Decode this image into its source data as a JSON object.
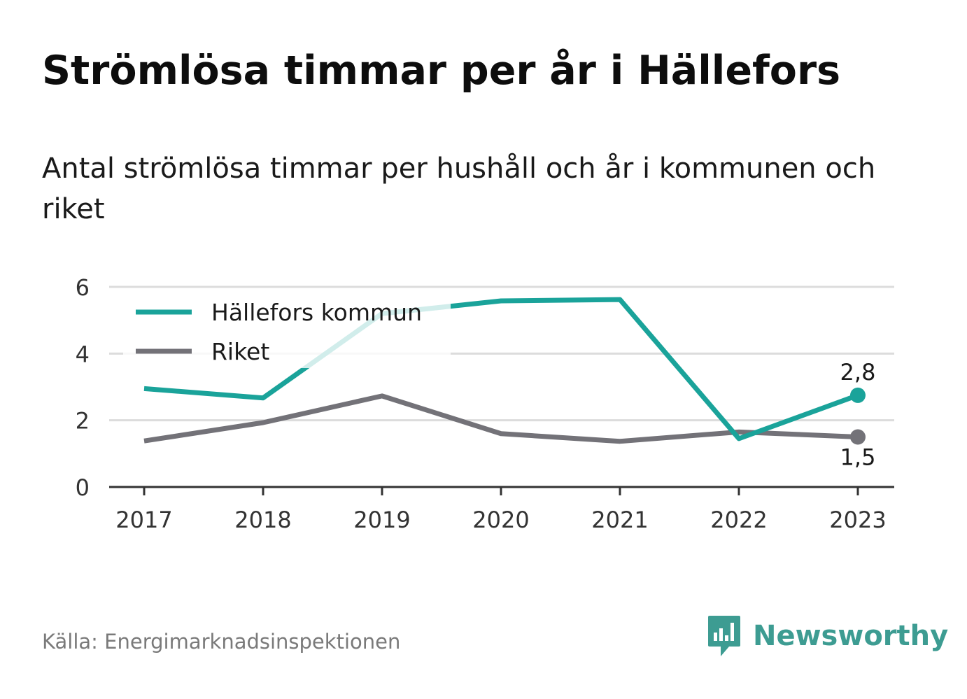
{
  "title": "Strömlösa timmar per år i Hällefors",
  "subtitle": "Antal strömlösa timmar per hushåll och år i kommunen och riket",
  "source": "Källa: Energimarknadsinspektionen",
  "brand": {
    "name": "Newsworthy",
    "icon": "bar-chart-speech-bubble-icon",
    "color": "#3d9c92"
  },
  "chart_data": {
    "type": "line",
    "x": [
      "2017",
      "2018",
      "2019",
      "2020",
      "2021",
      "2022",
      "2023"
    ],
    "ylim": [
      0,
      6
    ],
    "yticks": [
      "0",
      "2",
      "4",
      "6"
    ],
    "grid": true,
    "legend_placement": "top-left",
    "series": [
      {
        "name": "Hällefors kommun",
        "color": "#1aa39a",
        "values": [
          2.95,
          2.67,
          5.2,
          5.58,
          5.62,
          1.45,
          2.75
        ],
        "end_label": "2,8"
      },
      {
        "name": "Riket",
        "color": "#737278",
        "values": [
          1.38,
          1.93,
          2.73,
          1.6,
          1.37,
          1.65,
          1.5
        ],
        "end_label": "1,5"
      }
    ]
  }
}
